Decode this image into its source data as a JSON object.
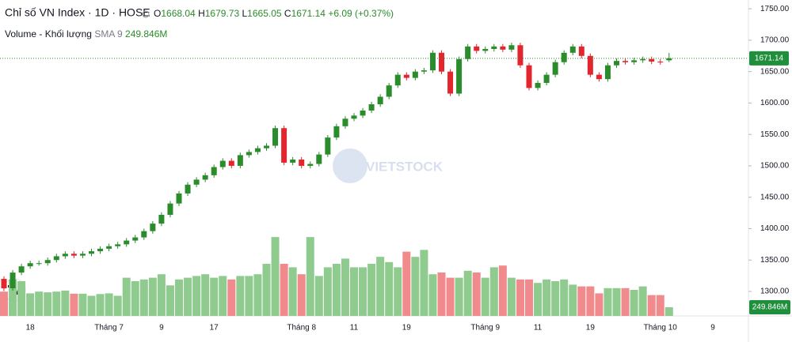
{
  "chart_data": {
    "type": "candlestick",
    "title": "Chỉ số VN Index · 1D · HOSE",
    "ohlc_labels": [
      "O",
      "H",
      "L",
      "C"
    ],
    "change": "+6.09 (+0.37%)",
    "volume_title": "Volume - Khối lượng",
    "volume_sma": "SMA 9",
    "volume_last_label": "249.846M",
    "watermark": "VIETSTOCK",
    "up_color": "#2a8c2a",
    "down_color": "#e3262d",
    "volume_up_color": "#8fcb8f",
    "volume_down_color": "#f08a8c",
    "categories": [
      null,
      null,
      null,
      "18",
      null,
      null,
      null,
      null,
      null,
      null,
      null,
      null,
      "Tháng 7",
      null,
      null,
      null,
      null,
      null,
      "9",
      null,
      null,
      null,
      null,
      null,
      "17",
      null,
      null,
      null,
      null,
      null,
      null,
      null,
      null,
      null,
      "Tháng 8",
      null,
      null,
      null,
      null,
      null,
      "11",
      null,
      null,
      null,
      null,
      null,
      "19",
      null,
      null,
      null,
      null,
      null,
      null,
      null,
      null,
      "Tháng 9",
      null,
      null,
      null,
      null,
      null,
      "11",
      null,
      null,
      null,
      null,
      null,
      "19",
      null,
      null,
      null,
      null,
      null,
      null,
      null,
      "Tháng 10",
      null,
      null,
      null,
      null,
      null,
      "9"
    ],
    "open": [
      1320,
      1305,
      1330,
      1340,
      1345,
      1345,
      1350,
      1356,
      1360,
      1357,
      1360,
      1364,
      1368,
      1372,
      1375,
      1381,
      1386,
      1396,
      1408,
      1422,
      1440,
      1456,
      1470,
      1478,
      1485,
      1498,
      1508,
      1500,
      1517,
      1522,
      1528,
      1532,
      1560,
      1505,
      1510,
      1500,
      1503,
      1518,
      1545,
      1563,
      1575,
      1580,
      1588,
      1598,
      1610,
      1628,
      1645,
      1640,
      1650,
      1652,
      1680,
      1650,
      1615,
      1670,
      1690,
      1683,
      1686,
      1690,
      1685,
      1692,
      1660,
      1624,
      1632,
      1645,
      1665,
      1680,
      1690,
      1675,
      1645,
      1638,
      1660,
      1667,
      1665,
      1668,
      1670,
      1666,
      1668.04,
      null,
      null,
      null,
      null,
      null
    ],
    "high": [
      1324,
      1334,
      1344,
      1349,
      1349,
      1354,
      1360,
      1364,
      1364,
      1364,
      1368,
      1372,
      1376,
      1379,
      1385,
      1390,
      1400,
      1412,
      1426,
      1444,
      1460,
      1474,
      1482,
      1489,
      1502,
      1512,
      1512,
      1521,
      1526,
      1532,
      1536,
      1564,
      1564,
      1514,
      1514,
      1507,
      1522,
      1549,
      1567,
      1579,
      1584,
      1592,
      1602,
      1614,
      1632,
      1649,
      1649,
      1654,
      1656,
      1684,
      1684,
      1654,
      1674,
      1694,
      1694,
      1690,
      1694,
      1694,
      1696,
      1696,
      1664,
      1636,
      1649,
      1669,
      1684,
      1694,
      1694,
      1679,
      1649,
      1664,
      1671,
      1671,
      1672,
      1674,
      1674,
      1670,
      1679.73,
      null,
      null,
      null,
      null,
      null
    ],
    "low": [
      1301,
      1301,
      1326,
      1336,
      1341,
      1341,
      1346,
      1352,
      1353,
      1353,
      1356,
      1360,
      1364,
      1368,
      1371,
      1377,
      1382,
      1392,
      1404,
      1418,
      1436,
      1452,
      1466,
      1474,
      1481,
      1494,
      1496,
      1496,
      1513,
      1518,
      1524,
      1528,
      1501,
      1501,
      1496,
      1496,
      1499,
      1514,
      1541,
      1559,
      1571,
      1576,
      1584,
      1594,
      1606,
      1624,
      1636,
      1636,
      1646,
      1648,
      1646,
      1611,
      1611,
      1666,
      1679,
      1679,
      1682,
      1681,
      1681,
      1656,
      1620,
      1620,
      1628,
      1641,
      1661,
      1676,
      1671,
      1641,
      1634,
      1634,
      1656,
      1661,
      1661,
      1664,
      1662,
      1661,
      1665.05,
      null,
      null,
      null,
      null,
      null
    ],
    "close": [
      1305,
      1330,
      1340,
      1345,
      1345,
      1350,
      1356,
      1360,
      1357,
      1360,
      1364,
      1368,
      1372,
      1375,
      1381,
      1386,
      1396,
      1408,
      1422,
      1440,
      1456,
      1470,
      1478,
      1485,
      1498,
      1508,
      1500,
      1517,
      1522,
      1528,
      1532,
      1560,
      1505,
      1510,
      1500,
      1503,
      1518,
      1545,
      1563,
      1575,
      1580,
      1588,
      1598,
      1610,
      1628,
      1645,
      1640,
      1650,
      1652,
      1680,
      1650,
      1615,
      1670,
      1690,
      1683,
      1686,
      1690,
      1685,
      1692,
      1660,
      1624,
      1632,
      1645,
      1665,
      1680,
      1690,
      1675,
      1645,
      1638,
      1660,
      1667,
      1665,
      1668,
      1670,
      1666,
      1665.05,
      1671.14,
      null,
      null,
      null,
      null,
      null
    ],
    "volume": [
      700,
      1050,
      1000,
      650,
      700,
      680,
      700,
      730,
      640,
      640,
      580,
      630,
      650,
      580,
      1100,
      1000,
      1050,
      1100,
      1200,
      880,
      1050,
      1100,
      1150,
      1200,
      1100,
      1150,
      1050,
      1150,
      1150,
      1200,
      1500,
      2270,
      1500,
      1400,
      1200,
      2270,
      1150,
      1400,
      1500,
      1650,
      1400,
      1400,
      1500,
      1700,
      1550,
      1400,
      1850,
      1700,
      1900,
      1200,
      1250,
      1100,
      1100,
      1300,
      1250,
      1100,
      1400,
      1450,
      1100,
      1050,
      1050,
      950,
      1050,
      1000,
      1050,
      900,
      850,
      850,
      650,
      800,
      800,
      800,
      750,
      850,
      600,
      600,
      249.846,
      null,
      null,
      null,
      null,
      null
    ],
    "volume_ylim": [
      0,
      2500
    ],
    "ylim": [
      1261,
      1764
    ],
    "yticks": [
      {
        "value": 1300,
        "label": "1300.00"
      },
      {
        "value": 1350,
        "label": "1350.00"
      },
      {
        "value": 1400,
        "label": "1400.00"
      },
      {
        "value": 1450,
        "label": "1450.00"
      },
      {
        "value": 1500,
        "label": "1500.00"
      },
      {
        "value": 1550,
        "label": "1550.00"
      },
      {
        "value": 1600,
        "label": "1600.00"
      },
      {
        "value": 1650,
        "label": "1650.00"
      },
      {
        "value": 1700,
        "label": "1700.00"
      },
      {
        "value": 1750,
        "label": "1750.00"
      }
    ]
  }
}
